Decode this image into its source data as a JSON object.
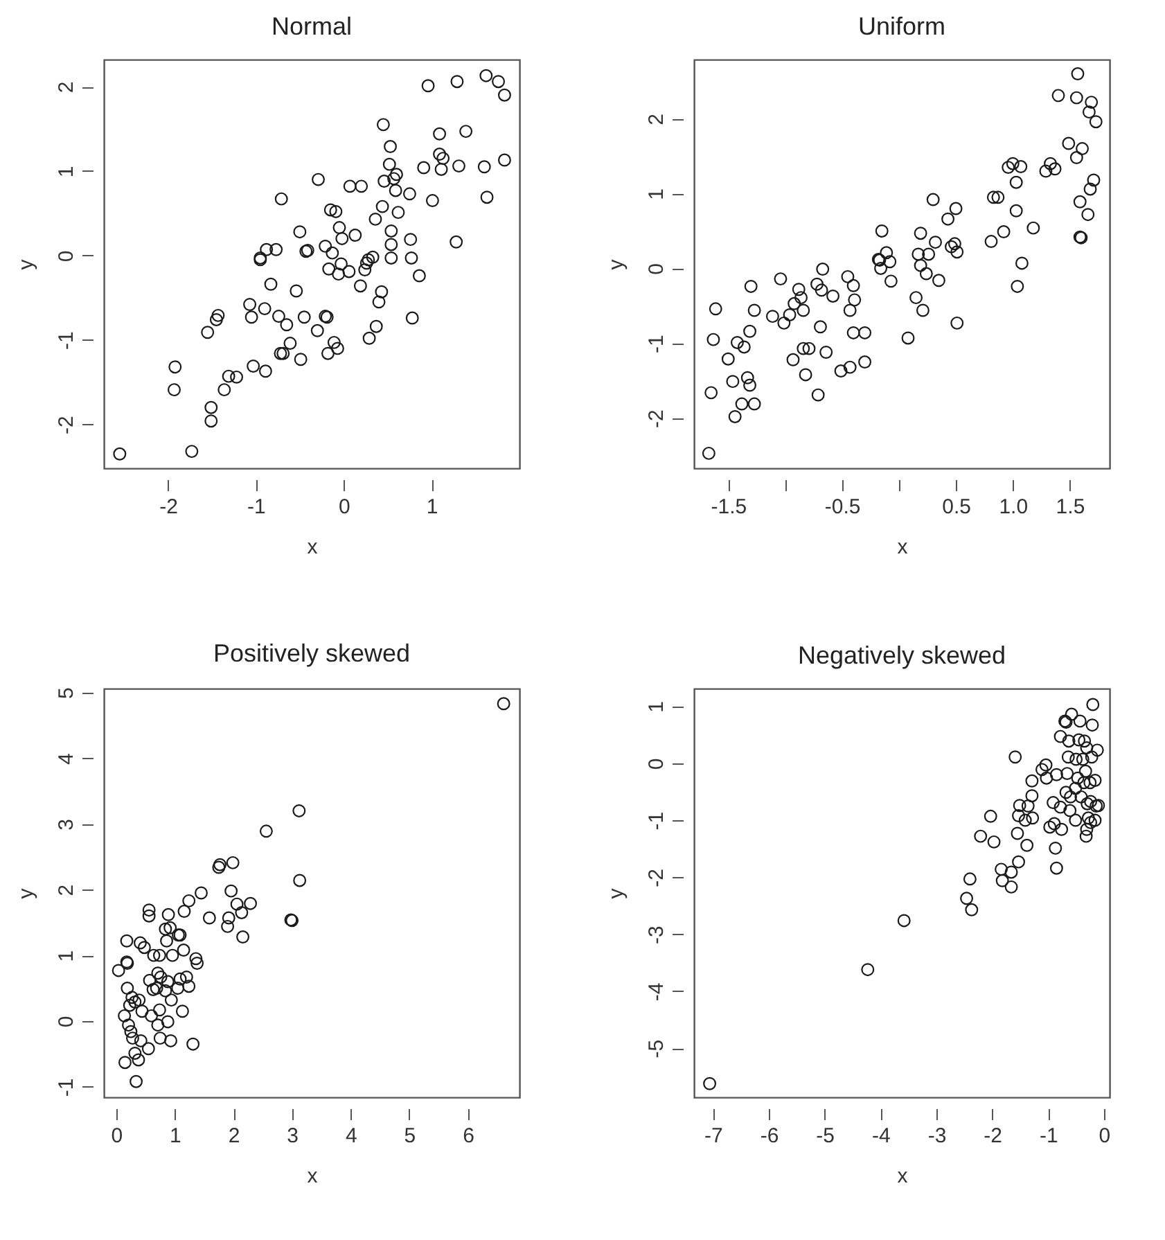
{
  "chart_data": [
    {
      "type": "scatter",
      "title": "Normal",
      "xlabel": "x",
      "ylabel": "y",
      "color": "#1a1a1a",
      "marker": "circle",
      "xlim": [
        -2.73,
        2.0
      ],
      "ylim": [
        -2.52,
        2.32
      ],
      "xticks": [
        -2,
        -1,
        0,
        1
      ],
      "yticks": [
        -2,
        -1,
        0,
        1,
        2
      ],
      "x": [
        -2.55,
        -1.73,
        -1.92,
        -1.93,
        -1.51,
        -1.51,
        -1.55,
        -1.45,
        -1.43,
        -1.36,
        -1.31,
        -1.22,
        -1.07,
        -1.05,
        -1.03,
        -0.9,
        -0.89,
        -0.95,
        -0.95,
        -0.88,
        -0.83,
        -0.77,
        -0.71,
        -0.74,
        -0.65,
        -0.72,
        -0.69,
        -0.61,
        -0.49,
        -0.54,
        -0.5,
        -0.45,
        -0.43,
        -0.41,
        -0.29,
        -0.3,
        -0.21,
        -0.19,
        -0.18,
        -0.11,
        -0.07,
        -0.21,
        -0.15,
        -0.09,
        -0.13,
        -0.17,
        -0.05,
        -0.03,
        -0.06,
        -0.02,
        0.06,
        0.07,
        0.2,
        0.13,
        0.19,
        0.24,
        0.26,
        0.28,
        0.33,
        0.29,
        0.37,
        0.36,
        0.4,
        0.43,
        0.44,
        0.45,
        0.46,
        0.52,
        0.53,
        0.54,
        0.54,
        0.54,
        0.57,
        0.6,
        0.62,
        0.59,
        0.75,
        0.76,
        0.77,
        0.78,
        0.86,
        0.91,
        0.96,
        1.01,
        1.09,
        1.09,
        1.13,
        1.11,
        1.28,
        1.29,
        1.31,
        1.39,
        1.6,
        1.63,
        1.62,
        1.76,
        1.83,
        1.83
      ],
      "values": [
        -2.35,
        -2.32,
        -1.32,
        -1.59,
        -1.8,
        -1.96,
        -0.91,
        -0.76,
        -0.71,
        -1.59,
        -1.43,
        -1.44,
        -0.58,
        -0.73,
        -1.31,
        -0.63,
        -1.37,
        -0.03,
        -0.05,
        0.07,
        -0.34,
        0.07,
        0.67,
        -0.72,
        -0.82,
        -1.16,
        -1.16,
        -1.04,
        -1.23,
        -0.42,
        0.28,
        -0.73,
        0.05,
        0.06,
        0.9,
        -0.89,
        -0.72,
        -0.73,
        -1.16,
        -1.03,
        -1.1,
        0.11,
        0.54,
        0.52,
        0.03,
        -0.16,
        0.33,
        -0.1,
        -0.22,
        0.2,
        -0.19,
        0.82,
        0.82,
        0.24,
        -0.36,
        -0.17,
        -0.09,
        -0.05,
        -0.02,
        -0.98,
        -0.84,
        0.43,
        -0.55,
        -0.43,
        0.58,
        1.55,
        0.88,
        1.08,
        1.29,
        -0.03,
        0.13,
        0.29,
        0.91,
        0.96,
        0.51,
        0.77,
        0.73,
        0.19,
        -0.03,
        -0.74,
        -0.24,
        1.04,
        2.01,
        0.65,
        1.44,
        1.2,
        1.15,
        1.02,
        0.16,
        2.06,
        1.06,
        1.47,
        1.05,
        0.69,
        2.13,
        2.06,
        1.9,
        1.13
      ]
    },
    {
      "type": "scatter",
      "title": "Uniform",
      "xlabel": "x",
      "ylabel": "y",
      "color": "#1a1a1a",
      "marker": "circle",
      "xlim": [
        -1.8,
        1.85
      ],
      "ylim": [
        -2.67,
        2.79
      ],
      "xticks": [
        -1.5,
        {
          "value": -1,
          "label": null
        },
        -0.5,
        {
          "value": 0,
          "label": null
        },
        0.5,
        {
          "value": 1,
          "label": "1.0"
        },
        1.5
      ],
      "yticks": [
        -2,
        -1,
        0,
        1,
        2
      ],
      "x": [
        -1.67,
        -1.65,
        -1.63,
        -1.61,
        -1.5,
        -1.46,
        -1.44,
        -1.42,
        -1.38,
        -1.36,
        -1.31,
        -1.33,
        -1.31,
        -1.3,
        -1.27,
        -1.27,
        -1.11,
        -1.04,
        -1.01,
        -0.96,
        -0.93,
        -0.92,
        -0.88,
        -0.86,
        -0.84,
        -0.84,
        -0.79,
        -0.82,
        -0.72,
        -0.69,
        -0.68,
        -0.67,
        -0.64,
        -0.71,
        -0.58,
        -0.51,
        -0.45,
        -0.43,
        -0.4,
        -0.39,
        -0.4,
        -0.43,
        -0.3,
        -0.3,
        -0.18,
        -0.17,
        -0.15,
        -0.16,
        -0.11,
        -0.08,
        -0.07,
        0.08,
        0.15,
        0.17,
        0.19,
        0.19,
        0.21,
        0.24,
        0.26,
        0.32,
        0.3,
        0.35,
        0.43,
        0.46,
        0.49,
        0.51,
        0.5,
        0.51,
        0.81,
        0.83,
        0.87,
        0.92,
        0.96,
        1.0,
        1.03,
        1.03,
        1.07,
        1.04,
        1.08,
        1.18,
        1.29,
        1.33,
        1.37,
        1.4,
        1.49,
        1.56,
        1.57,
        1.56,
        1.61,
        1.59,
        1.59,
        1.6,
        1.66,
        1.68,
        1.71,
        1.69,
        1.67,
        1.73
      ],
      "values": [
        -2.47,
        -1.66,
        -0.95,
        -0.54,
        -1.21,
        -1.51,
        -1.98,
        -0.99,
        -1.81,
        -1.05,
        -0.84,
        -1.46,
        -1.56,
        -0.24,
        -0.56,
        -1.81,
        -0.64,
        -0.14,
        -0.73,
        -0.62,
        -1.22,
        -0.47,
        -0.28,
        -0.39,
        -0.56,
        -1.07,
        -1.07,
        -1.42,
        -0.21,
        -0.78,
        -0.29,
        -0.01,
        -1.12,
        -1.69,
        -0.37,
        -1.37,
        -0.11,
        -0.56,
        -0.23,
        -0.42,
        -0.86,
        -1.32,
        -0.86,
        -1.25,
        0.12,
        0.11,
        0.5,
        0.0,
        0.21,
        0.09,
        -0.17,
        -0.93,
        -0.39,
        0.19,
        0.47,
        0.04,
        -0.56,
        -0.07,
        0.19,
        0.35,
        0.92,
        -0.16,
        0.66,
        0.29,
        0.33,
        0.22,
        0.8,
        -0.73,
        0.36,
        0.95,
        0.95,
        0.49,
        1.35,
        1.4,
        1.15,
        0.77,
        1.36,
        -0.24,
        0.07,
        0.54,
        1.3,
        1.4,
        1.33,
        2.31,
        1.67,
        1.48,
        2.6,
        2.28,
        1.6,
        0.89,
        0.42,
        0.41,
        0.72,
        1.06,
        1.18,
        2.22,
        2.09,
        1.96
      ]
    },
    {
      "type": "scatter",
      "title": "Positively skewed",
      "xlabel": "x",
      "ylabel": "y",
      "color": "#1a1a1a",
      "marker": "circle",
      "xlim": [
        -0.21,
        6.88
      ],
      "ylim": [
        -1.16,
        5.06
      ],
      "xticks": [
        0,
        1,
        2,
        3,
        4,
        5,
        6
      ],
      "yticks": [
        -1,
        0,
        1,
        2,
        3,
        4,
        5
      ],
      "x": [
        6.61,
        3.12,
        3.13,
        2.56,
        2.98,
        3.0,
        1.75,
        1.77,
        1.99,
        1.96,
        1.45,
        1.59,
        1.9,
        1.92,
        2.06,
        2.14,
        2.29,
        2.16,
        1.24,
        1.16,
        0.56,
        0.56,
        0.89,
        0.84,
        0.92,
        1.06,
        1.09,
        1.15,
        0.86,
        0.96,
        0.74,
        0.64,
        0.48,
        0.41,
        0.18,
        0.18,
        0.19,
        0.04,
        1.36,
        1.38,
        1.2,
        1.24,
        1.09,
        1.05,
        0.88,
        0.84,
        0.71,
        0.69,
        0.63,
        0.57,
        0.76,
        0.94,
        1.13,
        0.19,
        0.27,
        0.32,
        0.39,
        0.44,
        0.6,
        0.74,
        0.88,
        0.71,
        0.23,
        0.14,
        0.21,
        0.25,
        0.28,
        0.42,
        0.75,
        0.93,
        1.31,
        0.55,
        0.32,
        0.38,
        0.15,
        0.34
      ],
      "values": [
        4.83,
        3.2,
        2.14,
        2.89,
        1.54,
        1.53,
        2.34,
        2.38,
        2.41,
        1.98,
        1.95,
        1.57,
        1.44,
        1.57,
        1.78,
        1.65,
        1.79,
        1.28,
        1.83,
        1.67,
        1.69,
        1.6,
        1.62,
        1.4,
        1.42,
        1.31,
        1.31,
        1.08,
        1.22,
        1.0,
        1.0,
        1.0,
        1.12,
        1.19,
        1.22,
        0.9,
        0.88,
        0.77,
        0.95,
        0.88,
        0.67,
        0.53,
        0.64,
        0.5,
        0.6,
        0.46,
        0.73,
        0.5,
        0.48,
        0.62,
        0.67,
        0.32,
        0.15,
        0.5,
        0.36,
        0.29,
        0.32,
        0.15,
        0.08,
        0.17,
        -0.01,
        -0.06,
        0.24,
        0.08,
        -0.06,
        -0.16,
        -0.26,
        -0.3,
        -0.26,
        -0.3,
        -0.35,
        -0.42,
        -0.49,
        -0.59,
        -0.63,
        -0.92
      ]
    },
    {
      "type": "scatter",
      "title": "Negatively skewed",
      "xlabel": "x",
      "ylabel": "y",
      "color": "#1a1a1a",
      "marker": "circle",
      "xlim": [
        -7.34,
        0.1
      ],
      "ylim": [
        -5.86,
        1.31
      ],
      "xticks": [
        -7,
        -6,
        -5,
        -4,
        -3,
        -2,
        -1,
        0
      ],
      "yticks": [
        -5,
        -4,
        -3,
        -2,
        -1,
        0,
        1
      ],
      "x": [
        -7.06,
        -4.23,
        -3.58,
        -2.46,
        -2.37,
        -2.4,
        -1.84,
        -1.82,
        -1.66,
        -1.66,
        -2.21,
        -1.97,
        -2.03,
        -1.53,
        -1.55,
        -1.38,
        -1.53,
        -1.51,
        -1.36,
        -1.29,
        -1.29,
        -1.41,
        -1.28,
        -1.59,
        -1.11,
        -1.04,
        -1.03,
        -0.97,
        -0.89,
        -0.87,
        -0.85,
        -0.91,
        -0.85,
        -0.78,
        -0.78,
        -0.76,
        -0.7,
        -0.68,
        -0.58,
        -0.63,
        -0.64,
        -0.66,
        -0.68,
        -0.6,
        -0.61,
        -0.51,
        -0.43,
        -0.45,
        -0.5,
        -0.47,
        -0.51,
        -0.41,
        -0.38,
        -0.35,
        -0.31,
        -0.33,
        -0.36,
        -0.3,
        -0.31,
        -0.32,
        -0.28,
        -0.25,
        -0.22,
        -0.2,
        -0.21,
        -0.24,
        -0.16,
        -0.12,
        -0.14,
        -0.16,
        -0.1,
        -0.24
      ],
      "values": [
        -5.62,
        -3.62,
        -2.76,
        -2.37,
        -2.57,
        -2.03,
        -1.86,
        -2.06,
        -1.91,
        -2.17,
        -1.28,
        -1.38,
        -0.93,
        -1.73,
        -1.23,
        -1.44,
        -0.92,
        -0.74,
        -0.75,
        -0.57,
        -0.31,
        -1.0,
        -0.96,
        0.11,
        -0.11,
        -0.03,
        -0.26,
        -1.12,
        -1.06,
        -1.49,
        -1.84,
        -0.69,
        -0.2,
        0.47,
        -0.77,
        -1.16,
        0.74,
        0.72,
        0.86,
        0.39,
        0.11,
        -0.18,
        -0.51,
        -0.59,
        -0.83,
        -1.0,
        0.74,
        0.41,
        0.07,
        -0.26,
        -0.44,
        -0.59,
        0.07,
        0.39,
        0.27,
        -0.14,
        -0.34,
        -0.71,
        -1.16,
        -1.28,
        -0.96,
        -0.34,
        0.11,
        1.03,
        0.67,
        -1.04,
        -0.3,
        0.23,
        -0.75,
        -1.0,
        -0.74,
        -0.67
      ]
    }
  ]
}
